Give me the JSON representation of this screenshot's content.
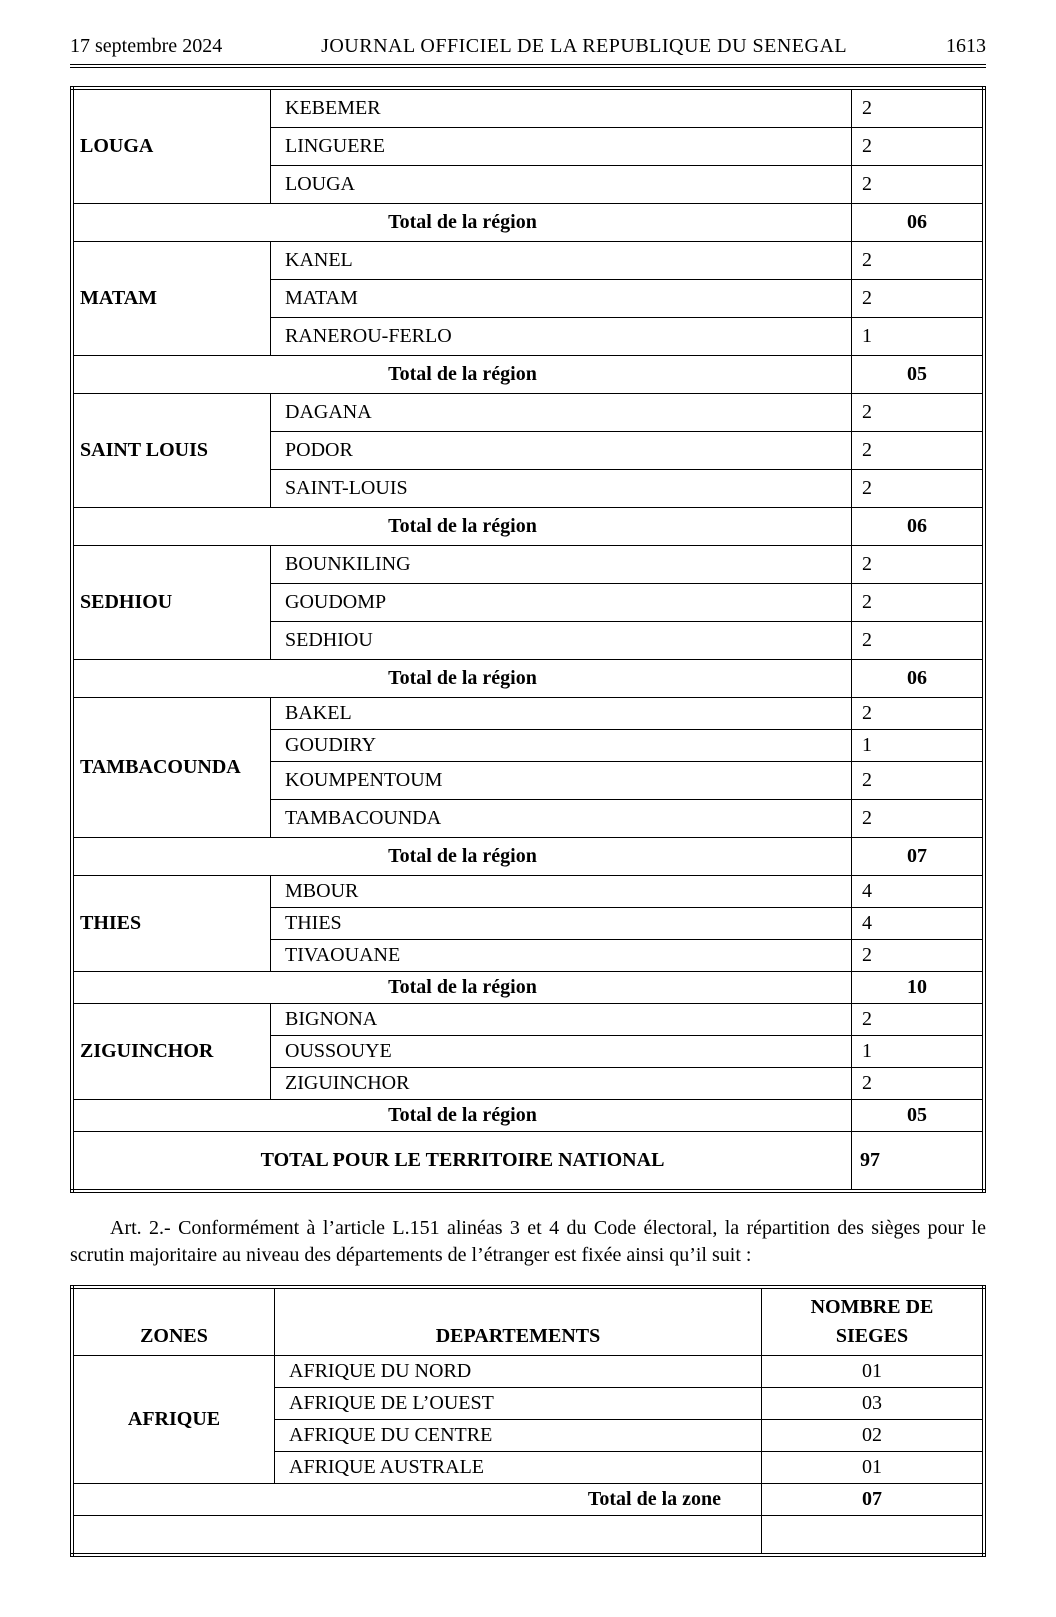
{
  "header": {
    "date": "17 septembre 2024",
    "title": "JOURNAL OFFICIEL DE LA REPUBLIQUE DU SENEGAL",
    "page": "1613"
  },
  "table1": {
    "total_label": "Total de la région",
    "grand_label": "TOTAL POUR LE TERRITOIRE NATIONAL",
    "grand_value": "97",
    "regions": [
      {
        "name": "LOUGA",
        "rows": [
          {
            "dept": "KEBEMER",
            "seats": "2"
          },
          {
            "dept": "LINGUERE",
            "seats": "2"
          },
          {
            "dept": "LOUGA",
            "seats": "2"
          }
        ],
        "total": "06",
        "tight": false
      },
      {
        "name": "MATAM",
        "rows": [
          {
            "dept": "KANEL",
            "seats": "2"
          },
          {
            "dept": "MATAM",
            "seats": "2"
          },
          {
            "dept": "RANEROU-FERLO",
            "seats": "1"
          }
        ],
        "total": "05",
        "tight": false
      },
      {
        "name": "SAINT LOUIS",
        "rows": [
          {
            "dept": "DAGANA",
            "seats": "2"
          },
          {
            "dept": "PODOR",
            "seats": "2"
          },
          {
            "dept": "SAINT-LOUIS",
            "seats": "2"
          }
        ],
        "total": "06",
        "tight": false
      },
      {
        "name": "SEDHIOU",
        "rows": [
          {
            "dept": "BOUNKILING",
            "seats": "2"
          },
          {
            "dept": "GOUDOMP",
            "seats": "2"
          },
          {
            "dept": "SEDHIOU",
            "seats": "2"
          }
        ],
        "total": "06",
        "tight": false
      },
      {
        "name": "TAMBACOUNDA",
        "rows": [
          {
            "dept": "BAKEL",
            "seats": "2"
          },
          {
            "dept": "GOUDIRY",
            "seats": "1"
          },
          {
            "dept": "KOUMPENTOUM",
            "seats": "2"
          },
          {
            "dept": "TAMBACOUNDA",
            "seats": "2"
          }
        ],
        "total": "07",
        "tight": false,
        "first_two_tight": true
      },
      {
        "name": "THIES",
        "rows": [
          {
            "dept": "MBOUR",
            "seats": "4"
          },
          {
            "dept": "THIES",
            "seats": "4"
          },
          {
            "dept": "TIVAOUANE",
            "seats": "2"
          }
        ],
        "total": "10",
        "tight": true
      },
      {
        "name": "ZIGUINCHOR",
        "rows": [
          {
            "dept": "BIGNONA",
            "seats": "2"
          },
          {
            "dept": "OUSSOUYE",
            "seats": "1"
          },
          {
            "dept": "ZIGUINCHOR",
            "seats": "2"
          }
        ],
        "total": "05",
        "tight": true
      }
    ]
  },
  "article2": "Art. 2.- Conformément à l’article L.151 alinéas 3 et 4 du Code électoral, la répartition des sièges pour le scrutin majoritaire au niveau des départements de l’étranger est fixée ainsi qu’il suit :",
  "table2": {
    "headers": {
      "zones": "ZONES",
      "depts": "DEPARTEMENTS",
      "seats_l1": "NOMBRE DE",
      "seats_l2": "SIEGES"
    },
    "zone": {
      "name": "AFRIQUE",
      "rows": [
        {
          "dept": "AFRIQUE DU NORD",
          "seats": "01"
        },
        {
          "dept": "AFRIQUE DE L’OUEST",
          "seats": "03"
        },
        {
          "dept": "AFRIQUE DU CENTRE",
          "seats": "02"
        },
        {
          "dept": "AFRIQUE  AUSTRALE",
          "seats": "01"
        }
      ],
      "total_label": "Total de la zone",
      "total": "07"
    }
  }
}
